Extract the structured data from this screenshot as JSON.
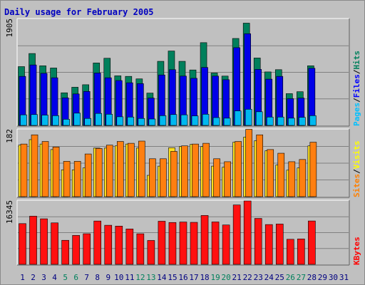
{
  "chart_data": {
    "type": "bar",
    "title": "Daily usage for February 2005",
    "categories": [
      "1",
      "2",
      "3",
      "4",
      "5",
      "6",
      "7",
      "8",
      "9",
      "10",
      "11",
      "12",
      "13",
      "14",
      "15",
      "16",
      "17",
      "18",
      "19",
      "20",
      "21",
      "22",
      "23",
      "24",
      "25",
      "26",
      "27",
      "28",
      "29",
      "30",
      "31"
    ],
    "weekend_days": [
      "5",
      "6",
      "12",
      "13",
      "19",
      "20",
      "26",
      "27"
    ],
    "panels": [
      {
        "name": "hits-panel",
        "ymax_label": "1905",
        "ymax": 1905,
        "right_labels": [
          {
            "text": "Pages",
            "color": "#00c0ff"
          },
          {
            "text": "Files",
            "color": "#0000ff"
          },
          {
            "text": "Hits",
            "color": "#00805c"
          }
        ],
        "series": [
          {
            "name": "Hits",
            "color": "#00805c",
            "values": [
              1055,
              1290,
              1070,
              1030,
              585,
              685,
              730,
              1120,
              1205,
              890,
              880,
              835,
              580,
              1150,
              1335,
              1150,
              995,
              1485,
              940,
              885,
              1560,
              1835,
              1210,
              960,
              1000,
              570,
              605,
              1070,
              0,
              0,
              0
            ]
          },
          {
            "name": "Files",
            "color": "#0000e8",
            "values": [
              880,
              1085,
              935,
              855,
              495,
              565,
              610,
              940,
              855,
              805,
              765,
              750,
              490,
              905,
              1000,
              885,
              845,
              1040,
              885,
              820,
              1395,
              1645,
              1005,
              830,
              880,
              480,
              490,
              1025,
              0,
              0,
              0
            ]
          },
          {
            "name": "Pages",
            "color": "#00b8f0",
            "values": [
              190,
              195,
              185,
              175,
              110,
              220,
              125,
              215,
              200,
              155,
              150,
              125,
              115,
              175,
              195,
              190,
              170,
              200,
              140,
              130,
              260,
              290,
              245,
              150,
              150,
              130,
              145,
              175,
              0,
              0,
              0
            ]
          }
        ]
      },
      {
        "name": "visits-panel",
        "ymax_label": "182",
        "ymax": 182,
        "right_labels": [
          {
            "text": "Sites",
            "color": "#ff8000"
          },
          {
            "text": "Visits",
            "color": "#ffff00"
          }
        ],
        "series": [
          {
            "name": "Visits",
            "color": "#ffe020",
            "values": [
              140,
              155,
              143,
              128,
              73,
              73,
              78,
              132,
              132,
              138,
              143,
              132,
              58,
              83,
              133,
              136,
              142,
              136,
              83,
              80,
              148,
              162,
              152,
              125,
              86,
              72,
              78,
              138,
              0,
              0,
              0
            ]
          },
          {
            "name": "Sites",
            "color": "#ff7f10",
            "values": [
              143,
              168,
              150,
              135,
              96,
              96,
              116,
              131,
              140,
              150,
              145,
              151,
              103,
              103,
              123,
              138,
              143,
              145,
              103,
              95,
              150,
              183,
              168,
              128,
              118,
              95,
              101,
              148,
              0,
              0,
              0
            ]
          }
        ]
      },
      {
        "name": "kbytes-panel",
        "ymax_label": "16345",
        "ymax": 16345,
        "right_labels": [
          {
            "text": "KBytes",
            "color": "#ff0000"
          }
        ],
        "series": [
          {
            "name": "KBytes",
            "color": "#ff1010",
            "values": [
              10500,
              12420,
              11740,
              10690,
              6200,
              7460,
              7890,
              11170,
              10080,
              9860,
              9120,
              7880,
              6160,
              11120,
              10790,
              10910,
              10830,
              12600,
              10930,
              10150,
              15310,
              16345,
              11840,
              10260,
              10390,
              6460,
              6550,
              11180,
              0,
              0,
              0
            ]
          }
        ]
      }
    ]
  },
  "colors": {
    "background": "#c0c0c0",
    "title": "#0000c0",
    "weekday_label": "#000080",
    "weekend_label": "#00805c",
    "gridline": "#808080"
  }
}
